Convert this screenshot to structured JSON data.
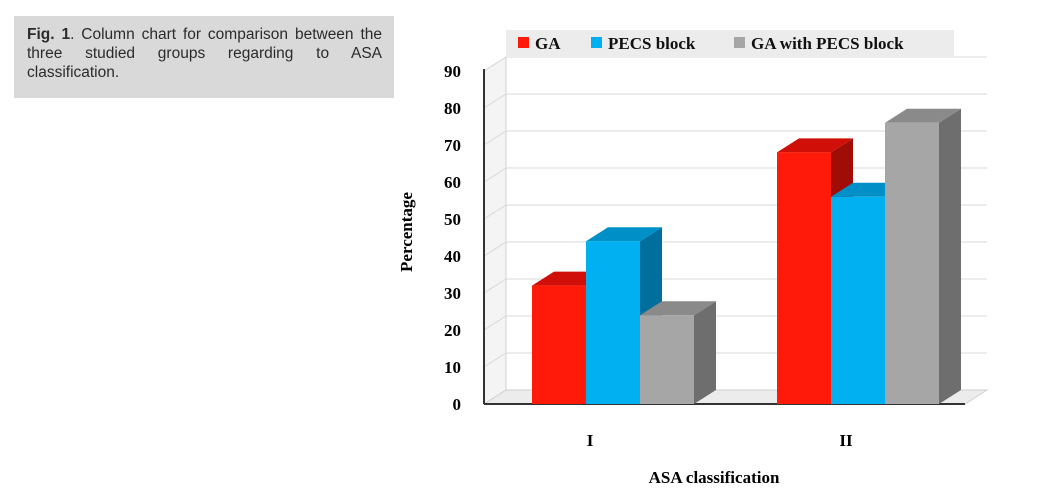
{
  "caption": {
    "label": "Fig. 1",
    "text": ". Column chart for comparison between the three studied groups regarding to ASA classification."
  },
  "chart_data": {
    "type": "bar",
    "categories": [
      "I",
      "II"
    ],
    "series": [
      {
        "name": "GA",
        "values": [
          32,
          68
        ],
        "color": "#ff1a0a",
        "top_color": "#d01008",
        "side_color": "#a00c06"
      },
      {
        "name": "PECS block",
        "values": [
          44,
          56
        ],
        "color": "#00b0f0",
        "top_color": "#0090c8",
        "side_color": "#006f9e"
      },
      {
        "name": "GA with PECS block",
        "values": [
          24,
          76
        ],
        "color": "#a6a6a6",
        "top_color": "#8a8a8a",
        "side_color": "#6e6e6e"
      }
    ],
    "xlabel": "ASA classification",
    "ylabel": "Percentage",
    "ylim": [
      0,
      90
    ],
    "yticks": [
      0,
      10,
      20,
      30,
      40,
      50,
      60,
      70,
      80,
      90
    ],
    "legend_position": "top",
    "grid": true,
    "style": "3d-column"
  }
}
